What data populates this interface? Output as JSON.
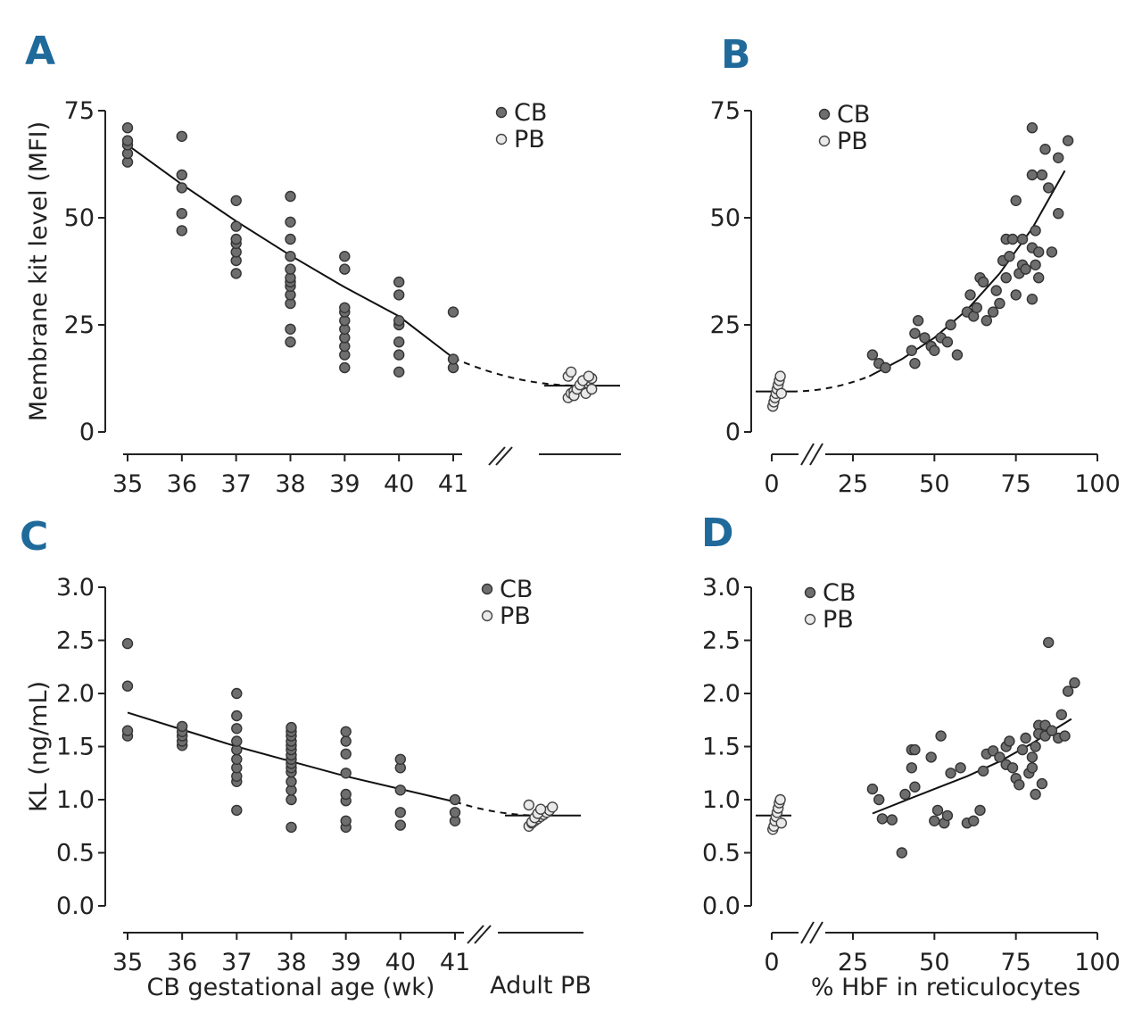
{
  "chart_data": [
    {
      "panel": "A",
      "type": "scatter",
      "ylabel": "Membrane kit level (MFI)",
      "xlabel": "",
      "ylim": [
        0,
        75
      ],
      "yticks": [
        "0",
        "25",
        "50",
        "75"
      ],
      "xticks": [
        "35",
        "36",
        "37",
        "38",
        "39",
        "40",
        "41"
      ],
      "legend": [
        "CB",
        "PB"
      ],
      "cb_points": [
        [
          35,
          63
        ],
        [
          35,
          65
        ],
        [
          35,
          67
        ],
        [
          35,
          68
        ],
        [
          35,
          71
        ],
        [
          36,
          47
        ],
        [
          36,
          51
        ],
        [
          36,
          57
        ],
        [
          36,
          60
        ],
        [
          36,
          69
        ],
        [
          37,
          37
        ],
        [
          37,
          40
        ],
        [
          37,
          42
        ],
        [
          37,
          44
        ],
        [
          37,
          45
        ],
        [
          37,
          48
        ],
        [
          37,
          54
        ],
        [
          38,
          21
        ],
        [
          38,
          24
        ],
        [
          38,
          30
        ],
        [
          38,
          32
        ],
        [
          38,
          34
        ],
        [
          38,
          35
        ],
        [
          38,
          36
        ],
        [
          38,
          38
        ],
        [
          38,
          41
        ],
        [
          38,
          45
        ],
        [
          38,
          49
        ],
        [
          38,
          55
        ],
        [
          39,
          15
        ],
        [
          39,
          18
        ],
        [
          39,
          20
        ],
        [
          39,
          22
        ],
        [
          39,
          24
        ],
        [
          39,
          26
        ],
        [
          39,
          28
        ],
        [
          39,
          29
        ],
        [
          39,
          38
        ],
        [
          39,
          41
        ],
        [
          40,
          14
        ],
        [
          40,
          18
        ],
        [
          40,
          21
        ],
        [
          40,
          25
        ],
        [
          40,
          26
        ],
        [
          40,
          32
        ],
        [
          40,
          35
        ],
        [
          41,
          15
        ],
        [
          41,
          17
        ],
        [
          41,
          28
        ]
      ],
      "pb_points": [
        [
          0,
          8
        ],
        [
          0,
          9
        ],
        [
          0,
          9.5
        ],
        [
          0,
          10
        ],
        [
          0,
          10.5
        ],
        [
          0,
          11
        ],
        [
          0,
          11.5
        ],
        [
          0,
          12
        ],
        [
          0,
          12.5
        ],
        [
          0,
          13
        ],
        [
          0,
          14
        ],
        [
          0,
          8.5
        ],
        [
          0,
          10
        ],
        [
          0,
          11
        ],
        [
          0,
          12
        ],
        [
          0,
          9
        ],
        [
          0,
          13
        ],
        [
          0,
          10
        ]
      ],
      "fit": [
        [
          35,
          67
        ],
        [
          36,
          57.8
        ],
        [
          37,
          49.2
        ],
        [
          38,
          41.2
        ],
        [
          39,
          33.8
        ],
        [
          40,
          27
        ],
        [
          41,
          17.3
        ]
      ]
    },
    {
      "panel": "B",
      "type": "scatter",
      "ylabel": "",
      "xlabel": "",
      "ylim": [
        0,
        75
      ],
      "xlim": [
        0,
        100
      ],
      "yticks": [
        "0",
        "25",
        "50",
        "75"
      ],
      "xticks": [
        "0",
        "25",
        "50",
        "75",
        "100"
      ],
      "legend": [
        "CB",
        "PB"
      ],
      "cb_points": [
        [
          31,
          18
        ],
        [
          33,
          16
        ],
        [
          35,
          15
        ],
        [
          43,
          19
        ],
        [
          44,
          16
        ],
        [
          44,
          23
        ],
        [
          45,
          26
        ],
        [
          47,
          22
        ],
        [
          49,
          20
        ],
        [
          50,
          19
        ],
        [
          52,
          22
        ],
        [
          54,
          21
        ],
        [
          55,
          25
        ],
        [
          57,
          18
        ],
        [
          60,
          28
        ],
        [
          61,
          32
        ],
        [
          62,
          27
        ],
        [
          63,
          29
        ],
        [
          64,
          36
        ],
        [
          65,
          35
        ],
        [
          66,
          26
        ],
        [
          68,
          28
        ],
        [
          69,
          33
        ],
        [
          70,
          30
        ],
        [
          71,
          40
        ],
        [
          72,
          45
        ],
        [
          72,
          36
        ],
        [
          73,
          41
        ],
        [
          74,
          45
        ],
        [
          75,
          32
        ],
        [
          75,
          54
        ],
        [
          76,
          37
        ],
        [
          77,
          45
        ],
        [
          77,
          39
        ],
        [
          78,
          38
        ],
        [
          80,
          43
        ],
        [
          80,
          31
        ],
        [
          80,
          71
        ],
        [
          81,
          47
        ],
        [
          81,
          39
        ],
        [
          82,
          42
        ],
        [
          82,
          36
        ],
        [
          83,
          60
        ],
        [
          84,
          66
        ],
        [
          85,
          57
        ],
        [
          86,
          42
        ],
        [
          88,
          64
        ],
        [
          88,
          51
        ],
        [
          91,
          68
        ],
        [
          80,
          60
        ]
      ],
      "pb_points": [
        [
          0,
          6
        ],
        [
          0,
          7
        ],
        [
          0,
          8
        ],
        [
          0,
          9
        ],
        [
          0,
          10
        ],
        [
          0,
          11
        ],
        [
          0,
          12
        ],
        [
          0,
          13
        ],
        [
          0,
          9
        ]
      ],
      "fit": [
        [
          30,
          13
        ],
        [
          40,
          17
        ],
        [
          50,
          22
        ],
        [
          60,
          28.5
        ],
        [
          70,
          37
        ],
        [
          80,
          47.5
        ],
        [
          90,
          61
        ]
      ]
    },
    {
      "panel": "C",
      "type": "scatter",
      "ylabel": "KL (ng/mL)",
      "xlabel": "CB gestational age (wk)",
      "ylim": [
        0,
        3
      ],
      "yticks": [
        "0.0",
        "0.5",
        "1.0",
        "1.5",
        "2.0",
        "2.5",
        "3.0"
      ],
      "xticks": [
        "35",
        "36",
        "37",
        "38",
        "39",
        "40",
        "41"
      ],
      "extra_xlabel": "Adult PB",
      "legend": [
        "CB",
        "PB"
      ],
      "cb_points": [
        [
          35,
          1.6
        ],
        [
          35,
          1.65
        ],
        [
          35,
          2.07
        ],
        [
          35,
          2.47
        ],
        [
          36,
          1.51
        ],
        [
          36,
          1.55
        ],
        [
          36,
          1.6
        ],
        [
          36,
          1.64
        ],
        [
          36,
          1.69
        ],
        [
          37,
          0.9
        ],
        [
          37,
          1.17
        ],
        [
          37,
          1.22
        ],
        [
          37,
          1.3
        ],
        [
          37,
          1.38
        ],
        [
          37,
          1.47
        ],
        [
          37,
          1.55
        ],
        [
          37,
          1.67
        ],
        [
          37,
          1.79
        ],
        [
          37,
          2.0
        ],
        [
          38,
          0.74
        ],
        [
          38,
          1.0
        ],
        [
          38,
          1.09
        ],
        [
          38,
          1.17
        ],
        [
          38,
          1.26
        ],
        [
          38,
          1.3
        ],
        [
          38,
          1.34
        ],
        [
          38,
          1.38
        ],
        [
          38,
          1.42
        ],
        [
          38,
          1.47
        ],
        [
          38,
          1.51
        ],
        [
          38,
          1.55
        ],
        [
          38,
          1.6
        ],
        [
          38,
          1.64
        ],
        [
          38,
          1.68
        ],
        [
          39,
          0.74
        ],
        [
          39,
          0.8
        ],
        [
          39,
          0.99
        ],
        [
          39,
          1.05
        ],
        [
          39,
          1.25
        ],
        [
          39,
          1.43
        ],
        [
          39,
          1.55
        ],
        [
          39,
          1.64
        ],
        [
          40,
          0.76
        ],
        [
          40,
          0.88
        ],
        [
          40,
          1.09
        ],
        [
          40,
          1.3
        ],
        [
          40,
          1.38
        ],
        [
          41,
          0.8
        ],
        [
          41,
          0.88
        ],
        [
          41,
          1.0
        ]
      ],
      "pb_points": [
        [
          0,
          0.75
        ],
        [
          0,
          0.78
        ],
        [
          0,
          0.8
        ],
        [
          0,
          0.82
        ],
        [
          0,
          0.84
        ],
        [
          0,
          0.86
        ],
        [
          0,
          0.88
        ],
        [
          0,
          0.9
        ],
        [
          0,
          0.93
        ],
        [
          0,
          0.95
        ],
        [
          0,
          0.79
        ],
        [
          0,
          0.83
        ],
        [
          0,
          0.87
        ],
        [
          0,
          0.91
        ]
      ],
      "fit": [
        [
          35,
          1.82
        ],
        [
          36,
          1.66
        ],
        [
          37,
          1.5
        ],
        [
          38,
          1.36
        ],
        [
          39,
          1.22
        ],
        [
          40,
          1.1
        ],
        [
          41,
          0.98
        ]
      ]
    },
    {
      "panel": "D",
      "type": "scatter",
      "ylabel": "",
      "xlabel": "% HbF in reticulocytes",
      "ylim": [
        0,
        3
      ],
      "xlim": [
        0,
        100
      ],
      "yticks": [
        "0.0",
        "0.5",
        "1.0",
        "1.5",
        "2.0",
        "2.5",
        "3.0"
      ],
      "xticks": [
        "0",
        "25",
        "50",
        "75",
        "100"
      ],
      "legend": [
        "CB",
        "PB"
      ],
      "cb_points": [
        [
          31,
          1.1
        ],
        [
          33,
          1.0
        ],
        [
          34,
          0.82
        ],
        [
          37,
          0.81
        ],
        [
          40,
          0.5
        ],
        [
          41,
          1.05
        ],
        [
          43,
          1.3
        ],
        [
          43,
          1.47
        ],
        [
          44,
          1.12
        ],
        [
          44,
          1.47
        ],
        [
          49,
          1.4
        ],
        [
          50,
          0.8
        ],
        [
          51,
          0.9
        ],
        [
          52,
          1.6
        ],
        [
          53,
          0.78
        ],
        [
          54,
          0.85
        ],
        [
          55,
          1.25
        ],
        [
          58,
          1.3
        ],
        [
          60,
          0.78
        ],
        [
          62,
          0.8
        ],
        [
          64,
          0.9
        ],
        [
          65,
          1.27
        ],
        [
          66,
          1.43
        ],
        [
          68,
          1.46
        ],
        [
          70,
          1.4
        ],
        [
          72,
          1.33
        ],
        [
          72,
          1.5
        ],
        [
          73,
          1.55
        ],
        [
          74,
          1.3
        ],
        [
          75,
          1.2
        ],
        [
          76,
          1.14
        ],
        [
          77,
          1.47
        ],
        [
          78,
          1.58
        ],
        [
          79,
          1.25
        ],
        [
          80,
          1.3
        ],
        [
          80,
          1.4
        ],
        [
          81,
          1.05
        ],
        [
          81,
          1.5
        ],
        [
          82,
          1.7
        ],
        [
          82,
          1.62
        ],
        [
          83,
          1.15
        ],
        [
          84,
          1.7
        ],
        [
          84,
          1.6
        ],
        [
          85,
          2.48
        ],
        [
          86,
          1.65
        ],
        [
          88,
          1.58
        ],
        [
          89,
          1.8
        ],
        [
          90,
          1.6
        ],
        [
          91,
          2.02
        ],
        [
          93,
          2.1
        ]
      ],
      "pb_points": [
        [
          0,
          0.72
        ],
        [
          0,
          0.75
        ],
        [
          0,
          0.8
        ],
        [
          0,
          0.84
        ],
        [
          0,
          0.88
        ],
        [
          0,
          0.92
        ],
        [
          0,
          0.97
        ],
        [
          0,
          1.0
        ],
        [
          0,
          0.78
        ]
      ],
      "fit": [
        [
          31,
          0.87
        ],
        [
          40,
          0.98
        ],
        [
          50,
          1.1
        ],
        [
          60,
          1.22
        ],
        [
          70,
          1.36
        ],
        [
          80,
          1.53
        ],
        [
          92,
          1.76
        ]
      ]
    }
  ]
}
